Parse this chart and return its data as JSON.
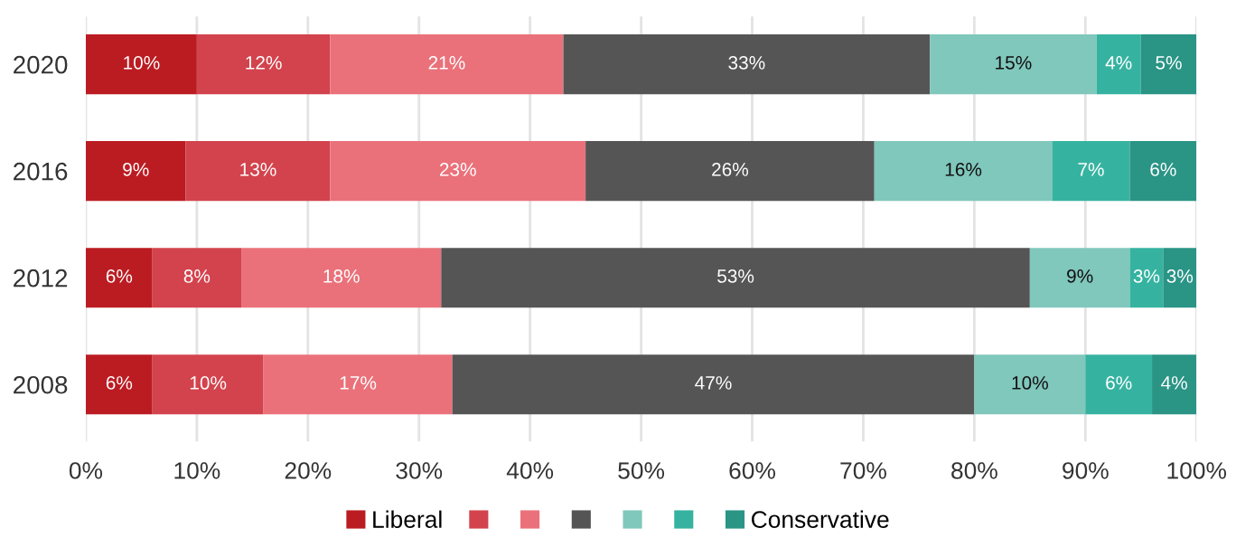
{
  "chart_data": {
    "type": "bar",
    "orientation": "horizontal",
    "stacked": true,
    "categories": [
      "2020",
      "2016",
      "2012",
      "2008"
    ],
    "series": [
      {
        "name": "Liberal",
        "color": "#bb1c22",
        "values": [
          10,
          9,
          6,
          6
        ],
        "value_labels": [
          "10%",
          "9%",
          "6%",
          "6%"
        ]
      },
      {
        "color": "#d3434d",
        "values": [
          12,
          13,
          8,
          10
        ],
        "value_labels": [
          "12%",
          "13%",
          "8%",
          "10%"
        ]
      },
      {
        "color": "#ea717a",
        "values": [
          21,
          23,
          18,
          17
        ],
        "value_labels": [
          "21%",
          "23%",
          "18%",
          "17%"
        ]
      },
      {
        "color": "#555555",
        "values": [
          33,
          26,
          53,
          47
        ],
        "value_labels": [
          "33%",
          "26%",
          "53%",
          "47%"
        ]
      },
      {
        "color": "#80c7bc",
        "values": [
          15,
          16,
          9,
          10
        ],
        "value_labels": [
          "15%",
          "16%",
          "9%",
          "10%"
        ]
      },
      {
        "color": "#36b3a0",
        "values": [
          4,
          7,
          3,
          6
        ],
        "value_labels": [
          "4%",
          "7%",
          "3%",
          "6%"
        ]
      },
      {
        "name": "Conservative",
        "color": "#2a9485",
        "values": [
          5,
          6,
          3,
          4
        ],
        "value_labels": [
          "5%",
          "6%",
          "3%",
          "4%"
        ]
      }
    ],
    "xlim": [
      0,
      100
    ],
    "xticks": [
      {
        "value": 0,
        "label": "0%"
      },
      {
        "value": 10,
        "label": "10%"
      },
      {
        "value": 20,
        "label": "20%"
      },
      {
        "value": 30,
        "label": "30%"
      },
      {
        "value": 40,
        "label": "40%"
      },
      {
        "value": 50,
        "label": "50%"
      },
      {
        "value": 60,
        "label": "60%"
      },
      {
        "value": 70,
        "label": "70%"
      },
      {
        "value": 80,
        "label": "80%"
      },
      {
        "value": 90,
        "label": "90%"
      },
      {
        "value": 100,
        "label": "100%"
      }
    ],
    "grid": "x",
    "legend": "bottom"
  }
}
